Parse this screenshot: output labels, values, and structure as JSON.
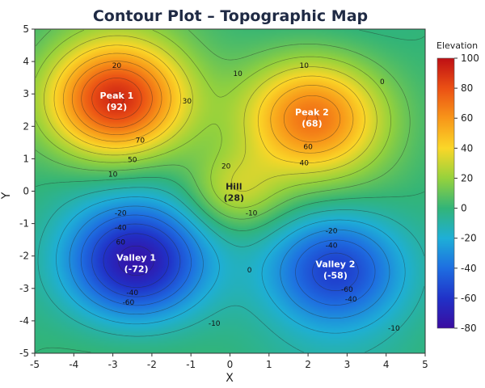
{
  "chart_data": {
    "type": "heatmap",
    "title": "Contour Plot – Topographic Map",
    "xlabel": "X",
    "ylabel": "Y",
    "xlim": [
      -5,
      5
    ],
    "ylim": [
      -5,
      5
    ],
    "x_ticks": [
      "-5",
      "-4",
      "-3",
      "-2",
      "-1",
      "0",
      "1",
      "2",
      "3",
      "4",
      "5"
    ],
    "y_ticks": [
      "-5",
      "-4",
      "-3",
      "-2",
      "-1",
      "0",
      "1",
      "2",
      "3",
      "4",
      "5"
    ],
    "colorbar": {
      "title": "Elevation",
      "range": [
        -80,
        100
      ],
      "ticks": [
        "100",
        "80",
        "60",
        "40",
        "20",
        "0",
        "-20",
        "-40",
        "-60",
        "-80"
      ]
    },
    "features": [
      {
        "name": "Peak 1",
        "value_label": "(92)",
        "x": -2.9,
        "y": 2.8,
        "value": 92
      },
      {
        "name": "Peak 2",
        "value_label": "(68)",
        "x": 2.1,
        "y": 2.3,
        "value": 68
      },
      {
        "name": "Hill",
        "value_label": "(28)",
        "x": 0.1,
        "y": 0.0,
        "value": 28
      },
      {
        "name": "Valley 1",
        "value_label": "(-72)",
        "x": -2.4,
        "y": -2.2,
        "value": -72
      },
      {
        "name": "Valley 2",
        "value_label": "(-58)",
        "x": 2.7,
        "y": -2.4,
        "value": -58
      }
    ],
    "contour_labels": [
      {
        "text": "20",
        "x": -2.9,
        "y": 3.8
      },
      {
        "text": "70",
        "x": -2.3,
        "y": 1.5
      },
      {
        "text": "50",
        "x": -2.5,
        "y": 0.9
      },
      {
        "text": "10",
        "x": -3.0,
        "y": 0.45
      },
      {
        "text": "30",
        "x": -1.1,
        "y": 2.7
      },
      {
        "text": "10",
        "x": 1.9,
        "y": 3.8
      },
      {
        "text": "10",
        "x": 0.2,
        "y": 3.55
      },
      {
        "text": "0",
        "x": 3.9,
        "y": 3.3
      },
      {
        "text": "60",
        "x": 2.0,
        "y": 1.3
      },
      {
        "text": "40",
        "x": 1.9,
        "y": 0.8
      },
      {
        "text": "20",
        "x": -0.1,
        "y": 0.7
      },
      {
        "text": "-10",
        "x": 0.55,
        "y": -0.75
      },
      {
        "text": "-20",
        "x": -2.8,
        "y": -0.75
      },
      {
        "text": "-40",
        "x": -2.8,
        "y": -1.2
      },
      {
        "text": "60",
        "x": -2.8,
        "y": -1.65
      },
      {
        "text": "-40",
        "x": -2.5,
        "y": -3.2
      },
      {
        "text": "-60",
        "x": -2.6,
        "y": -3.5
      },
      {
        "text": "-20",
        "x": 2.6,
        "y": -1.3
      },
      {
        "text": "-40",
        "x": 2.6,
        "y": -1.75
      },
      {
        "text": "-60",
        "x": 3.0,
        "y": -3.1
      },
      {
        "text": "-40",
        "x": 3.1,
        "y": -3.4
      },
      {
        "text": "0",
        "x": 0.5,
        "y": -2.5
      },
      {
        "text": "-10",
        "x": -0.4,
        "y": -4.15
      },
      {
        "text": "-10",
        "x": 4.2,
        "y": -4.3
      }
    ]
  }
}
